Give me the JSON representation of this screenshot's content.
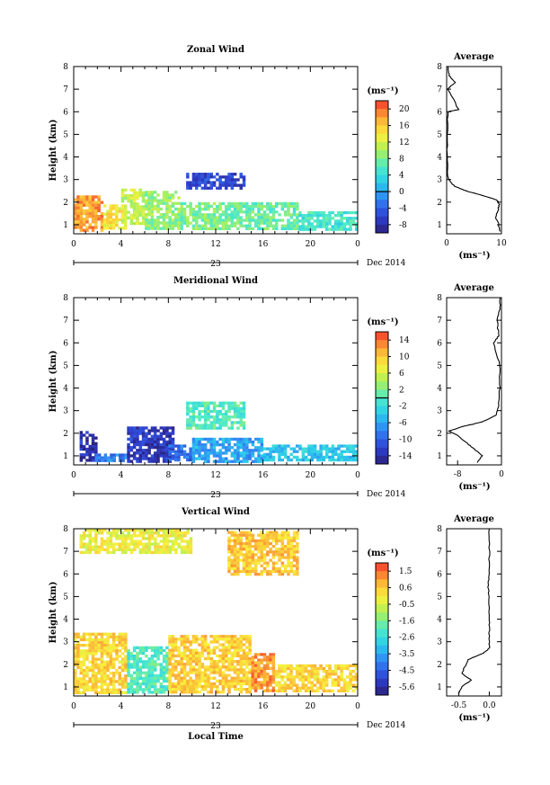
{
  "figure": {
    "date_label": "Dec 2014",
    "day_label": "23",
    "xlabel_bottom": "Local Time",
    "ylabel": "Height (km)",
    "x_ticks": [
      "0",
      "4",
      "8",
      "12",
      "16",
      "20",
      "0"
    ],
    "y_ticks": [
      "1",
      "2",
      "3",
      "4",
      "5",
      "6",
      "7",
      "8"
    ],
    "cb_unit": "(ms⁻¹)",
    "avg_title": "Average",
    "avg_xunit": "(ms⁻¹)"
  },
  "chart_data": [
    {
      "type": "heatmap",
      "title": "Zonal Wind",
      "xlabel": "",
      "ylabel": "Height (km)",
      "x_range_hours": [
        0,
        24
      ],
      "y_range_km": [
        0.6,
        8.0
      ],
      "colorbar": {
        "min": -10,
        "max": 22,
        "ticks": [
          "20",
          "16",
          "12",
          "8",
          "4",
          "0",
          "-4",
          "-8"
        ],
        "zero_line": 0
      },
      "regions": [
        {
          "t": [
            0,
            2.5
          ],
          "h": [
            0.8,
            2.3
          ],
          "value": 18
        },
        {
          "t": [
            2.5,
            4.5
          ],
          "h": [
            0.8,
            1.9
          ],
          "value": 14
        },
        {
          "t": [
            4,
            6
          ],
          "h": [
            1.0,
            2.6
          ],
          "value": 11
        },
        {
          "t": [
            6,
            9
          ],
          "h": [
            0.8,
            2.5
          ],
          "value": 9
        },
        {
          "t": [
            9,
            13
          ],
          "h": [
            0.8,
            2.0
          ],
          "value": 8
        },
        {
          "t": [
            13,
            19
          ],
          "h": [
            0.8,
            2.0
          ],
          "value": 7
        },
        {
          "t": [
            19,
            24
          ],
          "h": [
            0.8,
            1.6
          ],
          "value": 5
        },
        {
          "t": [
            9.5,
            14.5
          ],
          "h": [
            2.6,
            3.3
          ],
          "value": -6
        }
      ],
      "average_profile": {
        "xlim": [
          0,
          10
        ],
        "x_ticks": [
          "0",
          "10"
        ],
        "height": [
          0.7,
          1.0,
          1.3,
          1.6,
          1.9,
          2.1,
          2.3,
          2.5,
          2.7,
          3.0,
          4.0,
          5.0,
          6.0,
          6.1,
          7.0,
          7.3,
          7.6,
          8.0
        ],
        "values": [
          9.7,
          9.5,
          9.0,
          9.3,
          9.6,
          9.2,
          6.5,
          3.5,
          1.5,
          0.3,
          0.1,
          0.1,
          0.2,
          2.2,
          0.2,
          1.5,
          0.5,
          0.2
        ]
      }
    },
    {
      "type": "heatmap",
      "title": "Meridional Wind",
      "xlabel": "",
      "ylabel": "Height (km)",
      "x_range_hours": [
        0,
        24
      ],
      "y_range_km": [
        0.6,
        8.0
      ],
      "colorbar": {
        "min": -16,
        "max": 16,
        "ticks": [
          "14",
          "10",
          "6",
          "2",
          "-2",
          "-6",
          "-10",
          "-14"
        ],
        "zero_line": 0
      },
      "regions": [
        {
          "t": [
            0.5,
            1.8
          ],
          "h": [
            0.8,
            2.1
          ],
          "value": -14
        },
        {
          "t": [
            1.8,
            4.5
          ],
          "h": [
            0.8,
            1.1
          ],
          "value": -8
        },
        {
          "t": [
            4.5,
            8.5
          ],
          "h": [
            0.8,
            2.3
          ],
          "value": -13
        },
        {
          "t": [
            8,
            10
          ],
          "h": [
            0.8,
            1.5
          ],
          "value": -9
        },
        {
          "t": [
            10,
            16
          ],
          "h": [
            0.8,
            1.8
          ],
          "value": -6
        },
        {
          "t": [
            16,
            24
          ],
          "h": [
            0.8,
            1.5
          ],
          "value": -4
        },
        {
          "t": [
            9.5,
            14.5
          ],
          "h": [
            2.2,
            3.4
          ],
          "value": 0
        }
      ],
      "average_profile": {
        "xlim": [
          -10,
          0
        ],
        "x_ticks": [
          "-8",
          "0"
        ],
        "height": [
          0.7,
          1.0,
          1.3,
          1.6,
          1.9,
          2.1,
          2.3,
          2.5,
          2.8,
          3.2,
          4.0,
          5.0,
          6.0,
          6.3,
          7.0,
          7.5,
          8.0
        ],
        "values": [
          -4.5,
          -3.5,
          -5.0,
          -6.5,
          -8.0,
          -9.5,
          -7.0,
          -3.5,
          -1.0,
          -0.5,
          -0.3,
          -0.3,
          -1.5,
          -0.5,
          -0.8,
          -0.3,
          -0.2
        ]
      }
    },
    {
      "type": "heatmap",
      "title": "Vertical Wind",
      "xlabel": "Local Time",
      "ylabel": "Height (km)",
      "x_range_hours": [
        0,
        24
      ],
      "y_range_km": [
        0.6,
        8.0
      ],
      "colorbar": {
        "min": -6.0,
        "max": 2.0,
        "ticks": [
          "1.5",
          "0.6",
          "-0.5",
          "-1.6",
          "-2.6",
          "-3.5",
          "-4.5",
          "-5.6"
        ],
        "zero_line": null
      },
      "regions": [
        {
          "t": [
            0,
            4.5
          ],
          "h": [
            0.8,
            3.4
          ],
          "value": 0.3
        },
        {
          "t": [
            4.5,
            8
          ],
          "h": [
            0.8,
            2.8
          ],
          "value": -2.0
        },
        {
          "t": [
            8,
            15
          ],
          "h": [
            0.8,
            3.3
          ],
          "value": 0.4
        },
        {
          "t": [
            15,
            17
          ],
          "h": [
            0.8,
            2.5
          ],
          "value": 1.1
        },
        {
          "t": [
            17,
            24
          ],
          "h": [
            0.8,
            2.0
          ],
          "value": 0.3
        },
        {
          "t": [
            0.5,
            10
          ],
          "h": [
            7.0,
            8.0
          ],
          "value": -0.2
        },
        {
          "t": [
            13,
            19
          ],
          "h": [
            6.0,
            7.9
          ],
          "value": 0.5
        }
      ],
      "average_profile": {
        "xlim": [
          -0.7,
          0.2
        ],
        "x_ticks": [
          "-0.5",
          "0.0"
        ],
        "height": [
          0.7,
          1.0,
          1.3,
          1.6,
          1.9,
          2.2,
          2.5,
          2.7,
          3.0,
          3.5,
          4.0,
          5.0,
          5.5,
          6.0,
          7.0,
          8.0
        ],
        "values": [
          -0.5,
          -0.45,
          -0.3,
          -0.45,
          -0.4,
          -0.35,
          -0.1,
          0.0,
          0.0,
          0.0,
          0.0,
          0.0,
          -0.02,
          0.0,
          0.0,
          0.0
        ]
      }
    }
  ]
}
